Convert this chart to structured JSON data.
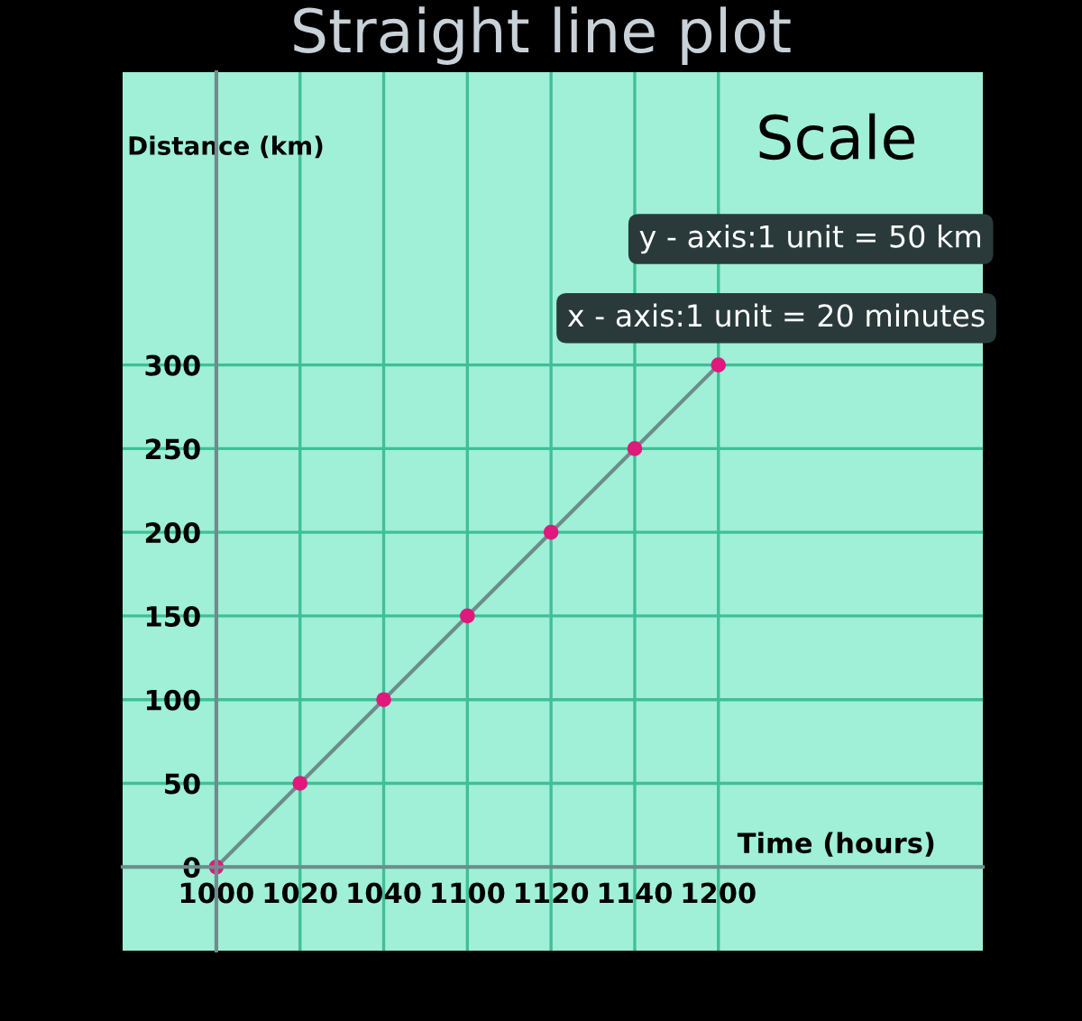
{
  "chart_data": {
    "type": "line",
    "title": "Straight line plot",
    "xlabel": "Time (hours)",
    "ylabel": "Distance (km)",
    "categories": [
      "1000",
      "1020",
      "1040",
      "1100",
      "1120",
      "1140",
      "1200"
    ],
    "series": [
      {
        "color": "#6e8c8c",
        "values": [
          0,
          50,
          100,
          150,
          200,
          250,
          300
        ]
      }
    ],
    "ylim": [
      -50,
      475
    ],
    "yticks": [
      0,
      50,
      100,
      150,
      200,
      250,
      300
    ],
    "grid": true,
    "marker": "circle",
    "line_style": "solid",
    "annotations": [
      "Scale",
      "y - axis:1 unit = 50 km",
      "x - axis:1 unit = 20 minutes"
    ]
  }
}
